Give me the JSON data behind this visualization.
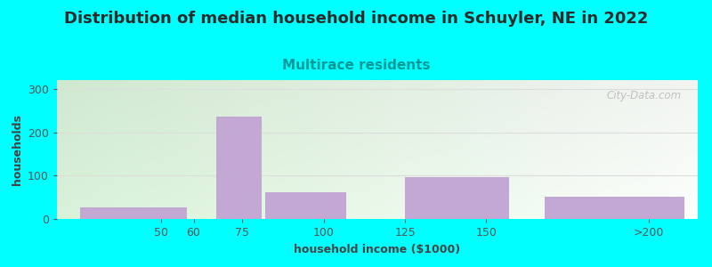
{
  "title": "Distribution of median household income in Schuyler, NE in 2022",
  "subtitle": "Multirace residents",
  "xlabel": "household income ($1000)",
  "ylabel": "households",
  "background_color": "#00FFFF",
  "bar_color": "#C4A8D4",
  "categories": [
    "<50",
    "75",
    "100",
    "150",
    ">200"
  ],
  "bar_lefts": [
    25,
    67,
    82,
    125,
    168
  ],
  "bar_widths": [
    33,
    14,
    25,
    32,
    43
  ],
  "bar_heights": [
    27,
    235,
    62,
    97,
    52
  ],
  "xtick_positions": [
    50,
    60,
    75,
    100,
    125,
    150,
    200
  ],
  "xtick_labels": [
    "50",
    "60",
    "75",
    "100",
    "125",
    "150",
    ">200"
  ],
  "ytick_positions": [
    0,
    100,
    200,
    300
  ],
  "ytick_labels": [
    "0",
    "100",
    "200",
    "300"
  ],
  "ylim": [
    0,
    320
  ],
  "xlim": [
    18,
    215
  ],
  "title_fontsize": 13,
  "subtitle_fontsize": 11,
  "axis_label_fontsize": 9,
  "tick_fontsize": 9,
  "title_color": "#2a2a2a",
  "subtitle_color": "#009999",
  "axis_label_color": "#444444",
  "tick_color": "#555555",
  "grid_color": "#dddddd",
  "watermark_text": "City-Data.com"
}
